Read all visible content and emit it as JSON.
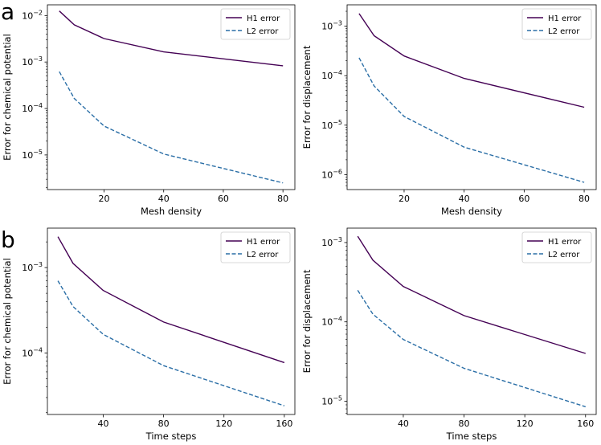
{
  "figure_labels": {
    "a": "a",
    "b": "b"
  },
  "colors": {
    "h1": "#440154",
    "l2": "#2a6ea6"
  },
  "chart_data": [
    {
      "id": "a-left",
      "type": "line",
      "xscale": "linear",
      "yscale": "log",
      "x": [
        5,
        10,
        20,
        40,
        80
      ],
      "series": [
        {
          "name": "H1 error",
          "style": "solid",
          "values": [
            0.0125,
            0.0063,
            0.0032,
            0.00165,
            0.00083
          ]
        },
        {
          "name": "L2 error",
          "style": "dashed",
          "values": [
            0.00062,
            0.000165,
            4.2e-05,
            1.05e-05,
            2.5e-06
          ]
        }
      ],
      "xlabel": "Mesh density",
      "ylabel": "Error for chemical potential",
      "xticks": [
        20,
        40,
        60,
        80
      ],
      "xtick_labels": [
        "20",
        "40",
        "60",
        "80"
      ],
      "yticks": [
        {
          "mant": "10",
          "exp": "−2",
          "value": 0.01
        },
        {
          "mant": "10",
          "exp": "−3",
          "value": 0.001
        },
        {
          "mant": "10",
          "exp": "−4",
          "value": 0.0001
        },
        {
          "mant": "10",
          "exp": "−5",
          "value": 1e-05
        }
      ],
      "xlim": [
        1,
        84
      ],
      "ylim": [
        1.8e-06,
        0.017
      ],
      "legend": "top-right"
    },
    {
      "id": "a-right",
      "type": "line",
      "xscale": "linear",
      "yscale": "log",
      "x": [
        5,
        10,
        20,
        40,
        80
      ],
      "series": [
        {
          "name": "H1 error",
          "style": "solid",
          "values": [
            0.0018,
            0.00064,
            0.00025,
            8.8e-05,
            2.3e-05
          ]
        },
        {
          "name": "L2 error",
          "style": "dashed",
          "values": [
            0.00023,
            6.2e-05,
            1.5e-05,
            3.6e-06,
            7e-07
          ]
        }
      ],
      "xlabel": "Mesh density",
      "ylabel": "Error for displacement",
      "xticks": [
        20,
        40,
        60,
        80
      ],
      "xtick_labels": [
        "20",
        "40",
        "60",
        "80"
      ],
      "yticks": [
        {
          "mant": "10",
          "exp": "−3",
          "value": 0.001
        },
        {
          "mant": "10",
          "exp": "−4",
          "value": 0.0001
        },
        {
          "mant": "10",
          "exp": "−5",
          "value": 1e-05
        },
        {
          "mant": "10",
          "exp": "−6",
          "value": 1e-06
        }
      ],
      "xlim": [
        1,
        84
      ],
      "ylim": [
        5e-07,
        0.0027
      ],
      "legend": "top-right"
    },
    {
      "id": "b-left",
      "type": "line",
      "xscale": "linear",
      "yscale": "log",
      "x": [
        10,
        20,
        40,
        80,
        160
      ],
      "series": [
        {
          "name": "H1 error",
          "style": "solid",
          "values": [
            0.0023,
            0.00112,
            0.00054,
            0.00023,
            7.7e-05
          ]
        },
        {
          "name": "L2 error",
          "style": "dashed",
          "values": [
            0.0007,
            0.00035,
            0.000165,
            7.1e-05,
            2.4e-05
          ]
        }
      ],
      "xlabel": "Time steps",
      "ylabel": "Error for chemical potential",
      "xticks": [
        40,
        80,
        120,
        160
      ],
      "xtick_labels": [
        "40",
        "80",
        "120",
        "160"
      ],
      "yticks": [
        {
          "mant": "10",
          "exp": "−3",
          "value": 0.001
        },
        {
          "mant": "10",
          "exp": "−4",
          "value": 0.0001
        }
      ],
      "xlim": [
        3,
        167
      ],
      "ylim": [
        1.9e-05,
        0.0029
      ],
      "legend": "top-right"
    },
    {
      "id": "b-right",
      "type": "line",
      "xscale": "linear",
      "yscale": "log",
      "x": [
        10,
        20,
        40,
        80,
        160
      ],
      "series": [
        {
          "name": "H1 error",
          "style": "solid",
          "values": [
            0.0012,
            0.0006,
            0.00028,
            0.00012,
            4e-05
          ]
        },
        {
          "name": "L2 error",
          "style": "dashed",
          "values": [
            0.00025,
            0.000125,
            6e-05,
            2.6e-05,
            8.5e-06
          ]
        }
      ],
      "xlabel": "Time steps",
      "ylabel": "Error for displacement",
      "xticks": [
        40,
        80,
        120,
        160
      ],
      "xtick_labels": [
        "40",
        "80",
        "120",
        "160"
      ],
      "yticks": [
        {
          "mant": "10",
          "exp": "−3",
          "value": 0.001
        },
        {
          "mant": "10",
          "exp": "−4",
          "value": 0.0001
        },
        {
          "mant": "10",
          "exp": "−5",
          "value": 1e-05
        }
      ],
      "xlim": [
        3,
        167
      ],
      "ylim": [
        6.8e-06,
        0.00152
      ],
      "legend": "top-right"
    }
  ]
}
